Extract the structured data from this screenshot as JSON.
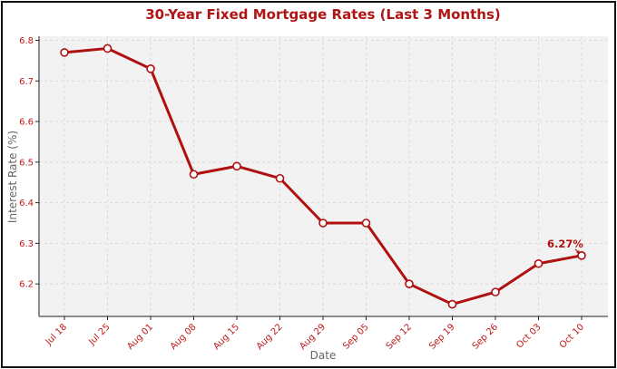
{
  "chart_data": {
    "type": "line",
    "title": "30-Year Fixed Mortgage Rates (Last 3 Months)",
    "xlabel": "Date",
    "ylabel": "Interest Rate (%)",
    "categories": [
      "Jul 18",
      "Jul 25",
      "Aug 01",
      "Aug 08",
      "Aug 15",
      "Aug 22",
      "Aug 29",
      "Sep 05",
      "Sep 12",
      "Sep 19",
      "Sep 26",
      "Oct 03",
      "Oct 10"
    ],
    "values": [
      6.77,
      6.78,
      6.73,
      6.47,
      6.49,
      6.46,
      6.35,
      6.35,
      6.2,
      6.15,
      6.18,
      6.25,
      6.27
    ],
    "ylim": [
      6.12,
      6.81
    ],
    "yticks": [
      "6.2",
      "6.3",
      "6.4",
      "6.5",
      "6.6",
      "6.7",
      "6.8"
    ],
    "grid": true,
    "annotation": {
      "text": "6.27%",
      "category": "Oct 10",
      "value": 6.27
    },
    "colors": {
      "line": "#b01010",
      "marker_fill": "#ffffff",
      "plot_bg": "#f2f2f2",
      "tick_text": "#c01818",
      "title": "#b01515"
    }
  }
}
